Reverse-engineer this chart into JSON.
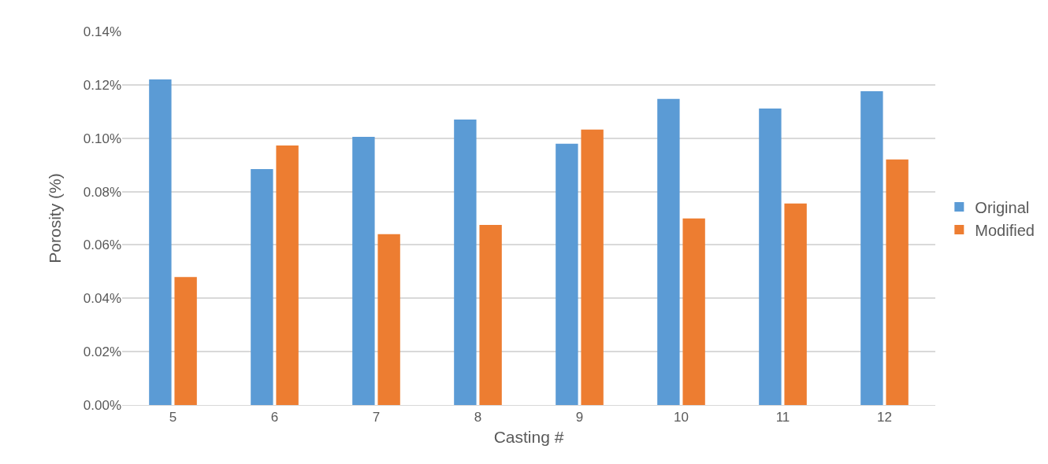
{
  "chart_data": {
    "type": "bar",
    "xlabel": "Casting #",
    "ylabel": "Porosity (%)",
    "categories": [
      "5",
      "6",
      "7",
      "8",
      "9",
      "10",
      "11",
      "12"
    ],
    "series": [
      {
        "name": "Original",
        "color": "#5b9bd5",
        "values": [
          0.122,
          0.0884,
          0.1005,
          0.107,
          0.0979,
          0.1147,
          0.1111,
          0.1176
        ]
      },
      {
        "name": "Modified",
        "color": "#ed7d31",
        "values": [
          0.048,
          0.0973,
          0.064,
          0.0675,
          0.1032,
          0.0699,
          0.0755,
          0.092
        ]
      }
    ],
    "ylim": [
      0,
      0.14
    ],
    "yticks": [
      {
        "value": 0,
        "label": "0.00%"
      },
      {
        "value": 0.02,
        "label": "0.02%"
      },
      {
        "value": 0.04,
        "label": "0.04%"
      },
      {
        "value": 0.06,
        "label": "0.06%"
      },
      {
        "value": 0.08,
        "label": "0.08%"
      },
      {
        "value": 0.1,
        "label": "0.10%"
      },
      {
        "value": 0.12,
        "label": "0.12%"
      },
      {
        "value": 0.14,
        "label": "0.14%"
      }
    ],
    "grid": "y",
    "legend": "right"
  }
}
